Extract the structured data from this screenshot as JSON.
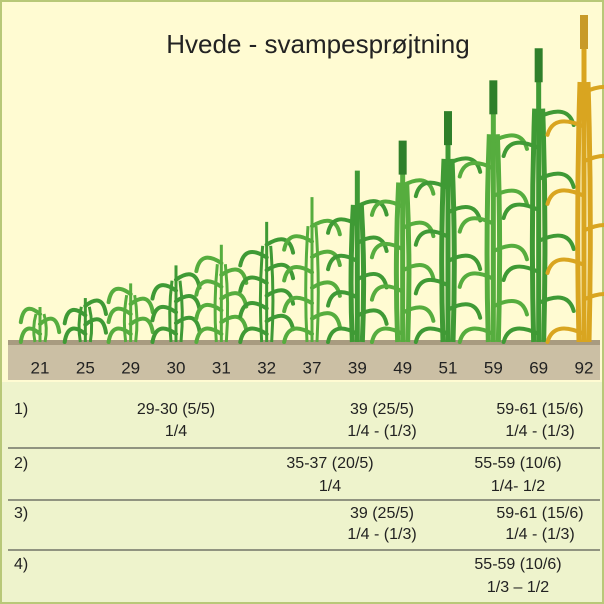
{
  "title": "Hvede - svampesprøjtning",
  "stages": [
    "21",
    "25",
    "29",
    "30",
    "31",
    "32",
    "37",
    "39",
    "49",
    "51",
    "59",
    "69",
    "92"
  ],
  "rows": [
    {
      "label": "1)",
      "entries": [
        {
          "stage": "29-30 (5/5)",
          "dose": "1/4"
        },
        {
          "stage": "39 (25/5)",
          "dose": "1/4 - (1/3)"
        },
        {
          "stage": "59-61 (15/6)",
          "dose": "1/4 - (1/3)"
        }
      ]
    },
    {
      "label": "2)",
      "entries": [
        {
          "stage": "35-37 (20/5)",
          "dose": "1/4"
        },
        {
          "stage": "55-59 (10/6)",
          "dose": "1/4- 1/2"
        }
      ]
    },
    {
      "label": "3)",
      "entries": [
        {
          "stage": "39 (25/5)",
          "dose": "1/4 - (1/3)"
        },
        {
          "stage": "59-61 (15/6)",
          "dose": "1/4 - (1/3)"
        }
      ]
    },
    {
      "label": "4)",
      "entries": [
        {
          "stage": "55-59 (10/6)",
          "dose": "1/3 – 1/2"
        }
      ]
    }
  ]
}
